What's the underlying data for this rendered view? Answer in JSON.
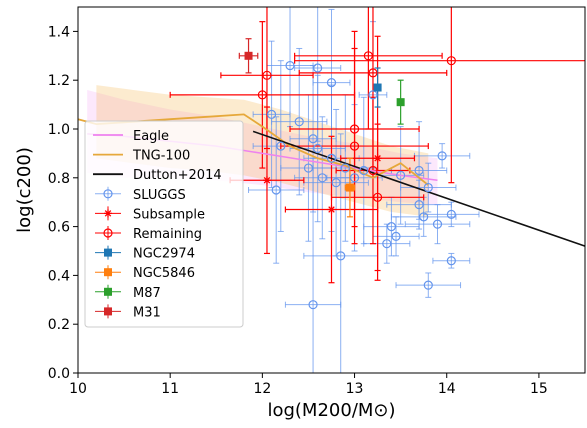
{
  "chart_data": {
    "type": "scatter",
    "xlabel": "log(M200/M⊙)",
    "ylabel": "log(c200)",
    "xlim": [
      10.0,
      15.5
    ],
    "ylim": [
      0.0,
      1.5
    ],
    "xticks": [
      10,
      11,
      12,
      13,
      14,
      15
    ],
    "yticks": [
      0.0,
      0.2,
      0.4,
      0.6,
      0.8,
      1.0,
      1.2,
      1.4
    ],
    "xtick_labels": [
      "10",
      "11",
      "12",
      "13",
      "14",
      "15"
    ],
    "ytick_labels": [
      "0.0",
      "0.2",
      "0.4",
      "0.6",
      "0.8",
      "1.0",
      "1.2",
      "1.4"
    ],
    "grid": false,
    "legend_position": "lower-left",
    "legend": [
      "Eagle",
      "TNG-100",
      "Dutton+2014",
      "SLUGGS",
      "Subsample",
      "Remaining",
      "NGC2974",
      "NGC5846",
      "M87",
      "M31"
    ],
    "colors": {
      "eagle": "#ee82ee",
      "tng": "#e6a83a",
      "dutton": "#111111",
      "sluggs": "#6495ed",
      "subsample": "#ff0000",
      "remaining": "#ff0000",
      "ngc2974": "#1f77b4",
      "ngc5846": "#ff7f0e",
      "m87": "#2ca02c",
      "m31": "#d62728"
    },
    "bands": [
      {
        "name": "Eagle",
        "x": [
          10.1,
          10.5,
          11.0,
          11.5,
          12.0,
          12.5,
          13.0,
          13.5,
          13.9
        ],
        "lower": [
          0.82,
          0.8,
          0.8,
          0.79,
          0.77,
          0.74,
          0.72,
          0.7,
          0.69
        ],
        "upper": [
          1.16,
          1.12,
          1.08,
          1.05,
          1.01,
          0.97,
          0.94,
          0.9,
          0.88
        ]
      },
      {
        "name": "TNG-100",
        "x": [
          10.2,
          10.6,
          11.0,
          11.4,
          11.8,
          12.2,
          12.6,
          13.0,
          13.4,
          13.8
        ],
        "lower": [
          0.88,
          0.86,
          0.84,
          0.83,
          0.81,
          0.78,
          0.74,
          0.7,
          0.66,
          0.64
        ],
        "upper": [
          1.18,
          1.16,
          1.14,
          1.13,
          1.12,
          1.08,
          1.03,
          0.98,
          0.93,
          0.9
        ]
      }
    ],
    "lines": [
      {
        "name": "Eagle",
        "x": [
          10.1,
          10.5,
          11.0,
          11.5,
          12.0,
          12.5,
          13.0,
          13.5,
          13.9
        ],
        "y": [
          0.98,
          0.97,
          0.95,
          0.93,
          0.9,
          0.87,
          0.84,
          0.81,
          0.79
        ]
      },
      {
        "name": "TNG-100",
        "x": [
          10.0,
          10.2,
          10.6,
          11.0,
          11.4,
          11.8,
          12.0,
          12.3,
          12.6,
          12.9,
          13.2,
          13.5,
          13.8
        ],
        "y": [
          1.04,
          1.02,
          1.03,
          1.04,
          1.05,
          1.06,
          1.01,
          0.93,
          0.88,
          0.85,
          0.8,
          0.86,
          0.77
        ]
      },
      {
        "name": "Dutton+2014",
        "x": [
          11.9,
          15.5
        ],
        "y": [
          0.99,
          0.52
        ]
      }
    ],
    "series": [
      {
        "name": "SLUGGS",
        "marker": "circle-open",
        "points": [
          {
            "x": 12.3,
            "y": 1.26,
            "xerr": 0.25,
            "yerr": 0.25
          },
          {
            "x": 12.6,
            "y": 1.25,
            "xerr": 0.25,
            "yerr": 0.3
          },
          {
            "x": 12.75,
            "y": 1.19,
            "xerr": 0.2,
            "yerr": 0.3
          },
          {
            "x": 13.2,
            "y": 1.14,
            "xerr": 0.15,
            "yerr": 0.3
          },
          {
            "x": 12.1,
            "y": 1.06,
            "xerr": 0.2,
            "yerr": 0.3
          },
          {
            "x": 12.4,
            "y": 1.03,
            "xerr": 0.3,
            "yerr": 0.3
          },
          {
            "x": 12.55,
            "y": 0.96,
            "xerr": 0.25,
            "yerr": 0.3
          },
          {
            "x": 12.2,
            "y": 0.93,
            "xerr": 0.3,
            "yerr": 0.35
          },
          {
            "x": 12.6,
            "y": 0.92,
            "xerr": 0.3,
            "yerr": 0.3
          },
          {
            "x": 12.75,
            "y": 0.88,
            "xerr": 0.3,
            "yerr": 0.3
          },
          {
            "x": 12.5,
            "y": 0.84,
            "xerr": 0.3,
            "yerr": 0.3
          },
          {
            "x": 12.9,
            "y": 0.84,
            "xerr": 0.35,
            "yerr": 0.3
          },
          {
            "x": 13.1,
            "y": 0.83,
            "xerr": 0.3,
            "yerr": 0.3
          },
          {
            "x": 12.65,
            "y": 0.8,
            "xerr": 0.3,
            "yerr": 0.25
          },
          {
            "x": 12.15,
            "y": 0.75,
            "xerr": 0.3,
            "yerr": 0.3
          },
          {
            "x": 12.8,
            "y": 0.78,
            "xerr": 0.35,
            "yerr": 0.3
          },
          {
            "x": 13.0,
            "y": 0.8,
            "xerr": 0.3,
            "yerr": 0.3
          },
          {
            "x": 13.5,
            "y": 0.81,
            "xerr": 0.25,
            "yerr": 0.2
          },
          {
            "x": 13.7,
            "y": 0.83,
            "xerr": 0.3,
            "yerr": 0.2
          },
          {
            "x": 13.95,
            "y": 0.89,
            "xerr": 0.3,
            "yerr": 0.05
          },
          {
            "x": 13.8,
            "y": 0.76,
            "xerr": 0.3,
            "yerr": 0.1
          },
          {
            "x": 13.7,
            "y": 0.69,
            "xerr": 0.35,
            "yerr": 0.1
          },
          {
            "x": 13.75,
            "y": 0.64,
            "xerr": 0.35,
            "yerr": 0.08
          },
          {
            "x": 13.9,
            "y": 0.61,
            "xerr": 0.35,
            "yerr": 0.08
          },
          {
            "x": 14.05,
            "y": 0.65,
            "xerr": 0.3,
            "yerr": 0.05
          },
          {
            "x": 13.4,
            "y": 0.6,
            "xerr": 0.3,
            "yerr": 0.12
          },
          {
            "x": 13.45,
            "y": 0.56,
            "xerr": 0.25,
            "yerr": 0.08
          },
          {
            "x": 13.35,
            "y": 0.53,
            "xerr": 0.25,
            "yerr": 0.08
          },
          {
            "x": 14.05,
            "y": 0.46,
            "xerr": 0.2,
            "yerr": 0.03
          },
          {
            "x": 13.8,
            "y": 0.36,
            "xerr": 0.35,
            "yerr": 0.05
          },
          {
            "x": 12.85,
            "y": 0.48,
            "xerr": 0.4,
            "yerr": 0.5
          },
          {
            "x": 12.55,
            "y": 0.28,
            "xerr": 0.3,
            "yerr": 0.6
          }
        ]
      },
      {
        "name": "Subsample",
        "marker": "star",
        "points": [
          {
            "x": 12.05,
            "y": 0.79,
            "xerr": 0.4,
            "yerr": 0.3
          },
          {
            "x": 12.75,
            "y": 0.67,
            "xerr": 0.5,
            "yerr": 0.3
          },
          {
            "x": 13.25,
            "y": 0.88,
            "xerr": 0.4,
            "yerr": 0.5
          }
        ]
      },
      {
        "name": "Remaining",
        "marker": "circle-open",
        "points": [
          {
            "x": 12.0,
            "y": 1.14,
            "xerr": 1.0,
            "yerr": 0.3
          },
          {
            "x": 12.05,
            "y": 1.22,
            "xerr": 0.5,
            "yerr": 0.3
          },
          {
            "x": 13.0,
            "y": 1.0,
            "xerr": 0.7,
            "yerr": 0.4
          },
          {
            "x": 13.15,
            "y": 1.3,
            "xerr": 0.8,
            "yerr": 0.3
          },
          {
            "x": 13.2,
            "y": 1.23,
            "xerr": 0.8,
            "yerr": 0.4
          },
          {
            "x": 14.05,
            "y": 1.28,
            "xerr": 1.7,
            "yerr": 0.5
          },
          {
            "x": 13.0,
            "y": 0.93,
            "xerr": 0.8,
            "yerr": 0.4
          },
          {
            "x": 13.2,
            "y": 0.83,
            "xerr": 0.4,
            "yerr": 0.3
          },
          {
            "x": 13.25,
            "y": 0.72,
            "xerr": 0.5,
            "yerr": 0.3
          }
        ]
      },
      {
        "name": "NGC2974",
        "marker": "square",
        "points": [
          {
            "x": 13.25,
            "y": 1.17,
            "xerr": 0.0,
            "yerr": 0.08
          }
        ]
      },
      {
        "name": "NGC5846",
        "marker": "square",
        "points": [
          {
            "x": 12.95,
            "y": 0.76,
            "xerr": 0.05,
            "yerr": 0.12
          }
        ]
      },
      {
        "name": "M87",
        "marker": "square",
        "points": [
          {
            "x": 13.5,
            "y": 1.11,
            "xerr": 0.0,
            "yerr": 0.09
          }
        ]
      },
      {
        "name": "M31",
        "marker": "square",
        "points": [
          {
            "x": 11.85,
            "y": 1.3,
            "xerr": 0.1,
            "yerr": 0.07
          }
        ]
      }
    ]
  }
}
